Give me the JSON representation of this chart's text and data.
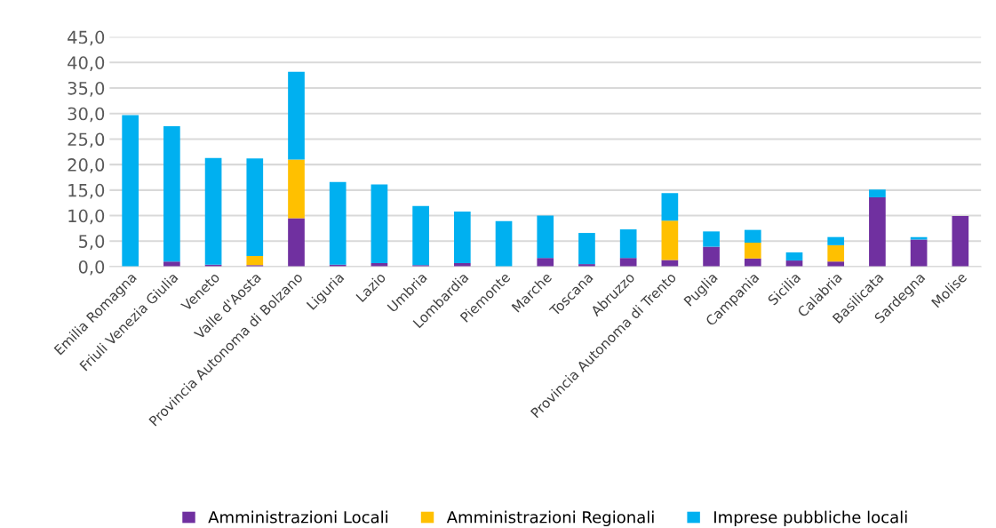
{
  "chart_data": {
    "type": "bar",
    "stacked": true,
    "categories": [
      "Emilia Romagna",
      "Friuli Venezia Giulia",
      "Veneto",
      "Valle d'Aosta",
      "Provincia Autonoma di Bolzano",
      "Liguria",
      "Lazio",
      "Umbria",
      "Lombardia",
      "Piemonte",
      "Marche",
      "Toscana",
      "Abruzzo",
      "Provincia Autonoma di Trento",
      "Puglia",
      "Campania",
      "Sicilia",
      "Calabria",
      "Basilicata",
      "Sardegna",
      "Molise"
    ],
    "series": [
      {
        "name": "Amministrazioni Locali",
        "color": "#7030a0",
        "values": [
          0,
          1.0,
          0.4,
          0.3,
          9.5,
          0.4,
          0.7,
          0.3,
          0.7,
          0,
          1.7,
          0.5,
          1.7,
          1.3,
          3.9,
          1.6,
          1.2,
          1.0,
          13.6,
          5.3,
          9.9
        ]
      },
      {
        "name": "Amministrazioni Regionali",
        "color": "#ffc000",
        "values": [
          0,
          0,
          0,
          1.8,
          11.5,
          0,
          0,
          0,
          0,
          0,
          0,
          0,
          0,
          7.7,
          0,
          3.1,
          0,
          3.2,
          0,
          0,
          0
        ]
      },
      {
        "name": "Imprese pubbliche locali",
        "color": "#00b0f0",
        "values": [
          29.7,
          26.5,
          20.9,
          19.1,
          17.2,
          16.2,
          15.4,
          11.6,
          10.1,
          8.9,
          8.3,
          6.1,
          5.6,
          5.4,
          3.0,
          2.5,
          1.6,
          1.6,
          1.5,
          0.5,
          0
        ]
      }
    ],
    "ylim": [
      0,
      45
    ],
    "yticks": [
      {
        "value": 0,
        "label": "0,0"
      },
      {
        "value": 5,
        "label": "5,0"
      },
      {
        "value": 10,
        "label": "10,0"
      },
      {
        "value": 15,
        "label": "15,0"
      },
      {
        "value": 20,
        "label": "20,0"
      },
      {
        "value": 25,
        "label": "25,0"
      },
      {
        "value": 30,
        "label": "30,0"
      },
      {
        "value": 35,
        "label": "35,0"
      },
      {
        "value": 40,
        "label": "40,0"
      },
      {
        "value": 45,
        "label": "45,0"
      }
    ],
    "grid": "y",
    "legend": "bottom"
  }
}
